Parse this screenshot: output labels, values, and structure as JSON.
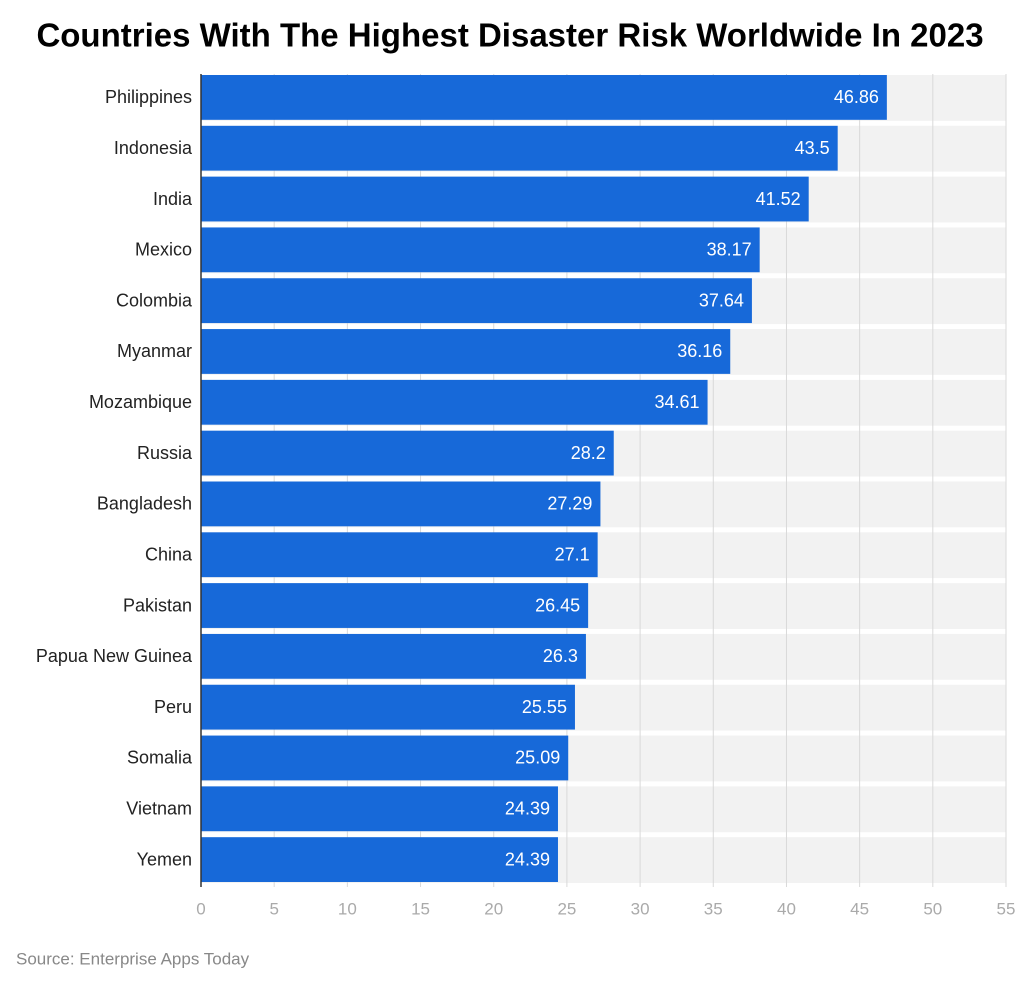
{
  "chart_data": {
    "type": "bar",
    "orientation": "horizontal",
    "title": "Countries With The Highest Disaster Risk Worldwide In 2023",
    "categories": [
      "Philippines",
      "Indonesia",
      "India",
      "Mexico",
      "Colombia",
      "Myanmar",
      "Mozambique",
      "Russia",
      "Bangladesh",
      "China",
      "Pakistan",
      "Papua New Guinea",
      "Peru",
      "Somalia",
      "Vietnam",
      "Yemen"
    ],
    "values": [
      46.86,
      43.5,
      41.52,
      38.17,
      37.64,
      36.16,
      34.61,
      28.2,
      27.29,
      27.1,
      26.45,
      26.3,
      25.55,
      25.09,
      24.39,
      24.39
    ],
    "color": "#1769d9",
    "xlim": [
      0,
      55
    ],
    "xticks": [
      0,
      5,
      10,
      15,
      20,
      25,
      30,
      35,
      40,
      45,
      50,
      55
    ],
    "grid": true,
    "source": "Source: Enterprise Apps Today"
  }
}
